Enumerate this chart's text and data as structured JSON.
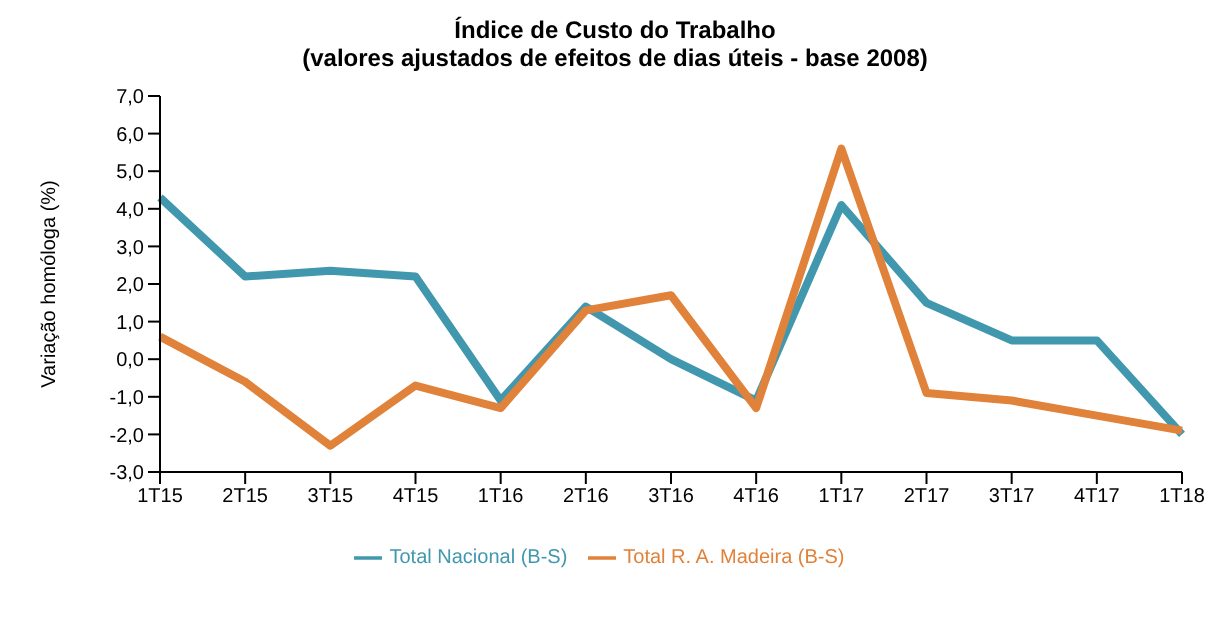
{
  "chart_data": {
    "type": "line",
    "title": "Índice de Custo do Trabalho",
    "subtitle": "(valores ajustados de efeitos de dias úteis - base 2008)",
    "ylabel": "Variação homóloga (%)",
    "categories": [
      "1T15",
      "2T15",
      "3T15",
      "4T15",
      "1T16",
      "2T16",
      "3T16",
      "4T16",
      "1T17",
      "2T17",
      "3T17",
      "4T17",
      "1T18"
    ],
    "series": [
      {
        "name": "Total Nacional (B-S)",
        "color": "#4198ae",
        "values": [
          4.3,
          2.2,
          2.35,
          2.2,
          -1.1,
          1.4,
          0.0,
          -1.1,
          4.1,
          1.5,
          0.5,
          0.5,
          -2.0
        ]
      },
      {
        "name": "Total R. A. Madeira (B-S)",
        "color": "#e0823a",
        "values": [
          0.6,
          -0.6,
          -2.3,
          -0.7,
          -1.3,
          1.3,
          1.7,
          -1.3,
          5.6,
          -0.9,
          -1.1,
          -1.5,
          -1.9
        ]
      }
    ],
    "ylim": [
      -3,
      7
    ],
    "yticks": [
      {
        "value": 7,
        "label": "7,0"
      },
      {
        "value": 6,
        "label": "6,0"
      },
      {
        "value": 5,
        "label": "5,0"
      },
      {
        "value": 4,
        "label": "4,0"
      },
      {
        "value": 3,
        "label": "3,0"
      },
      {
        "value": 2,
        "label": "2,0"
      },
      {
        "value": 1,
        "label": "1,0"
      },
      {
        "value": 0,
        "label": "0,0"
      },
      {
        "value": -1,
        "label": "-1,0"
      },
      {
        "value": -2,
        "label": "-2,0"
      },
      {
        "value": -3,
        "label": "-3,0"
      }
    ],
    "grid": false,
    "legend": "bottom",
    "marker": "none"
  }
}
